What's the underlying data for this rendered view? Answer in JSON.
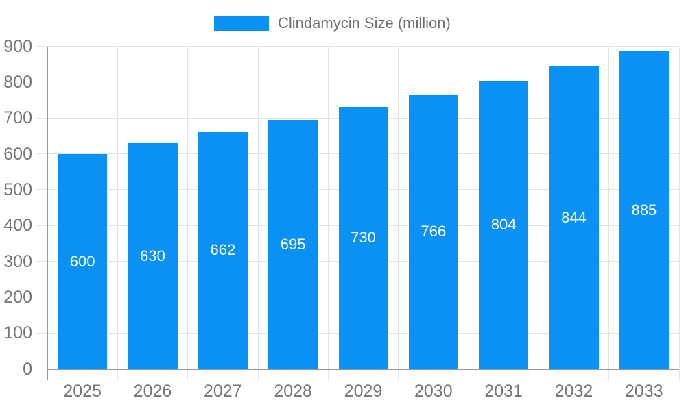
{
  "legend": {
    "label": "Clindamycin Size (million)",
    "position": "top"
  },
  "chart_data": {
    "type": "bar",
    "title": "",
    "series_name": "Clindamycin Size (million)",
    "categories": [
      "2025",
      "2026",
      "2027",
      "2028",
      "2029",
      "2030",
      "2031",
      "2032",
      "2033"
    ],
    "values": [
      600,
      630,
      662,
      695,
      730,
      766,
      804,
      844,
      885
    ],
    "xlabel": "",
    "ylabel": "",
    "ylim": [
      0,
      900
    ],
    "yticks": [
      0,
      100,
      200,
      300,
      400,
      500,
      600,
      700,
      800,
      900
    ],
    "grid": true,
    "value_labels_position": "inside-center",
    "legend_position": "top",
    "colors": {
      "bar": "#0a91f5",
      "axis": "#999999",
      "grid": "#e3e3e3",
      "tick_label": "#757575",
      "value_label": "#ffffff",
      "background": "#ffffff"
    }
  }
}
